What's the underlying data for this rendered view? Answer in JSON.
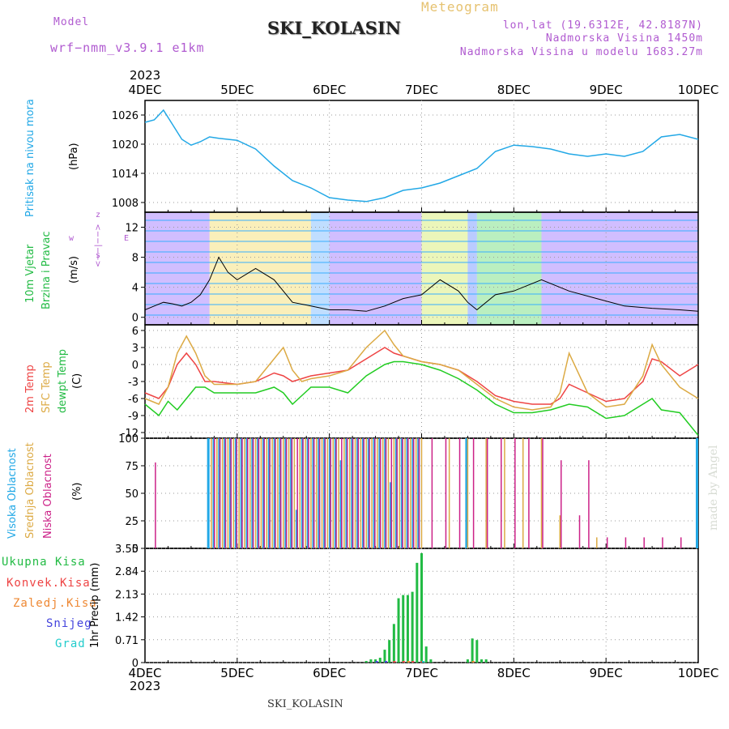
{
  "header": {
    "model_label": "Model",
    "model_value": "wrf−nmm_v3.9.1 e1km",
    "chart_kind": "Meteogram",
    "station": "SKI_KOLASIN",
    "coords": "lon,lat (19.6312E, 42.8187N)",
    "elevation": "Nadmorska Visina 1450m",
    "model_elevation": "Nadmorska Visina u modelu 1683.27m",
    "watermark": "made by Angel",
    "footer_station": "SKI_KOLASIN",
    "year_top": "2023",
    "year_bottom": "2023"
  },
  "colors": {
    "pressure": "#22a8e6",
    "wind_speed": "#000000",
    "temp2m": "#ee4444",
    "temp_sfc": "#dcaa44",
    "dewpoint": "#22cc22",
    "cloud_high": "#22a8e6",
    "cloud_mid": "#dcaa44",
    "cloud_low": "#cc2288",
    "precip_total": "#22bb44",
    "precip_conv": "#ee4444",
    "precip_freezing": "#ee8833",
    "precip_snow": "#4444dd",
    "precip_hail": "#22cccc"
  },
  "chart_data": {
    "x_labels": [
      "4DEC",
      "5DEC",
      "6DEC",
      "7DEC",
      "8DEC",
      "9DEC",
      "10DEC"
    ],
    "panels": [
      {
        "id": "pressure",
        "type": "line",
        "ylabel": "Pritisak na nivou mora",
        "unit": "(hPa)",
        "yticks": [
          1008,
          1014,
          1020,
          1026
        ],
        "ylim": [
          1006,
          1029
        ],
        "series": [
          {
            "name": "Pritisak na nivou mora",
            "x": [
              0,
              0.1,
              0.2,
              0.3,
              0.4,
              0.5,
              0.6,
              0.7,
              0.8,
              0.9,
              1.0,
              1.2,
              1.4,
              1.6,
              1.8,
              2.0,
              2.2,
              2.4,
              2.6,
              2.8,
              3.0,
              3.2,
              3.4,
              3.6,
              3.8,
              4.0,
              4.2,
              4.4,
              4.6,
              4.8,
              5.0,
              5.2,
              5.4,
              5.6,
              5.8,
              6.0
            ],
            "y": [
              1024.5,
              1025,
              1027,
              1024,
              1021,
              1019.8,
              1020.5,
              1021.5,
              1021.2,
              1021,
              1020.8,
              1019,
              1015.5,
              1012.5,
              1011,
              1009,
              1008.5,
              1008.2,
              1009,
              1010.5,
              1011,
              1012,
              1013.5,
              1015,
              1018.5,
              1019.8,
              1019.5,
              1019,
              1018,
              1017.5,
              1018,
              1017.5,
              1018.5,
              1021.5,
              1022,
              1021
            ]
          }
        ]
      },
      {
        "id": "wind",
        "type": "line",
        "ylabel": "10m Vjetar",
        "ylabel2": "Brzina i Pravac",
        "unit": "(m/s)",
        "compass": [
          "w",
          "<−−|−−>",
          "E",
          "z",
          "s"
        ],
        "yticks": [
          0,
          4,
          8,
          12
        ],
        "ylim": [
          -1,
          14
        ],
        "series": [
          {
            "name": "Brzina",
            "x": [
              0,
              0.1,
              0.2,
              0.3,
              0.4,
              0.5,
              0.6,
              0.7,
              0.8,
              0.9,
              1.0,
              1.2,
              1.4,
              1.6,
              1.8,
              2.0,
              2.2,
              2.4,
              2.6,
              2.8,
              3.0,
              3.2,
              3.4,
              3.5,
              3.6,
              3.8,
              4.0,
              4.3,
              4.6,
              4.9,
              5.2,
              5.5,
              5.8,
              6.0
            ],
            "y": [
              1,
              1.5,
              2,
              1.8,
              1.5,
              2,
              3,
              5,
              8,
              6,
              5,
              6.5,
              5,
              2,
              1.5,
              1,
              1,
              0.8,
              1.5,
              2.5,
              3,
              5,
              3.5,
              2,
              1,
              3,
              3.5,
              5,
              3.5,
              2.5,
              1.5,
              1.2,
              1,
              0.8
            ]
          }
        ]
      },
      {
        "id": "temperature",
        "type": "line",
        "labels": [
          "2m Temp",
          "SFC Temp",
          "dewpt Temp"
        ],
        "unit": "(C)",
        "yticks": [
          -12,
          -9,
          -6,
          -3,
          0,
          3,
          6
        ],
        "ylim": [
          -13,
          7
        ],
        "series": [
          {
            "name": "2m Temp",
            "x": [
              0,
              0.15,
              0.25,
              0.35,
              0.45,
              0.55,
              0.65,
              0.75,
              1.0,
              1.2,
              1.4,
              1.5,
              1.6,
              1.7,
              1.8,
              2.0,
              2.2,
              2.4,
              2.6,
              2.7,
              2.8,
              3.0,
              3.2,
              3.4,
              3.6,
              3.8,
              4.0,
              4.2,
              4.4,
              4.5,
              4.6,
              4.8,
              5.0,
              5.2,
              5.4,
              5.5,
              5.6,
              5.8,
              6.0
            ],
            "y": [
              -5,
              -6,
              -4,
              0,
              2,
              0,
              -3,
              -3,
              -3.5,
              -3,
              -1.5,
              -2,
              -3,
              -2.5,
              -2,
              -1.5,
              -1,
              1,
              3,
              2,
              1.5,
              0.5,
              0,
              -1,
              -3,
              -5.5,
              -6.5,
              -7,
              -7,
              -6,
              -3.5,
              -5,
              -6.5,
              -6,
              -3,
              1,
              0.5,
              -2,
              0
            ]
          },
          {
            "name": "SFC Temp",
            "x": [
              0,
              0.15,
              0.25,
              0.35,
              0.45,
              0.55,
              0.65,
              0.75,
              1.0,
              1.2,
              1.4,
              1.5,
              1.6,
              1.7,
              1.8,
              2.0,
              2.2,
              2.4,
              2.6,
              2.7,
              2.8,
              3.0,
              3.2,
              3.4,
              3.6,
              3.8,
              4.0,
              4.2,
              4.4,
              4.5,
              4.6,
              4.8,
              5.0,
              5.2,
              5.4,
              5.5,
              5.6,
              5.8,
              6.0
            ],
            "y": [
              -6,
              -7,
              -4,
              2,
              5,
              2,
              -2,
              -3.5,
              -3.5,
              -3,
              1,
              3,
              -1,
              -3,
              -2.5,
              -2,
              -1,
              3,
              6,
              3.5,
              1.5,
              0.5,
              0,
              -1,
              -3.5,
              -6,
              -7.5,
              -8,
              -7.5,
              -5,
              2,
              -5,
              -7.5,
              -7,
              -2,
              3.5,
              0,
              -4,
              -6
            ]
          },
          {
            "name": "dewpt Temp",
            "x": [
              0,
              0.15,
              0.25,
              0.35,
              0.45,
              0.55,
              0.65,
              0.75,
              1.0,
              1.2,
              1.4,
              1.5,
              1.6,
              1.7,
              1.8,
              2.0,
              2.2,
              2.4,
              2.6,
              2.7,
              2.8,
              3.0,
              3.2,
              3.4,
              3.6,
              3.8,
              4.0,
              4.2,
              4.4,
              4.5,
              4.6,
              4.8,
              5.0,
              5.2,
              5.4,
              5.5,
              5.6,
              5.8,
              6.0
            ],
            "y": [
              -7,
              -9,
              -6.5,
              -8,
              -6,
              -4,
              -4,
              -5,
              -5,
              -5,
              -4,
              -5,
              -7,
              -5.5,
              -4,
              -4,
              -5,
              -2,
              0,
              0.5,
              0.5,
              0,
              -1,
              -2.5,
              -4.5,
              -7,
              -8.5,
              -8.5,
              -8,
              -7.5,
              -7,
              -7.5,
              -9.5,
              -9,
              -7,
              -6,
              -8,
              -8.5,
              -12.5
            ]
          }
        ]
      },
      {
        "id": "clouds",
        "type": "bar",
        "labels": [
          "Visoka Oblacnost",
          "Srednja Oblacnost",
          "Niska Oblacnost"
        ],
        "unit": "(%)",
        "yticks": [
          0,
          25,
          50,
          75,
          100
        ],
        "ylim": [
          0,
          100
        ],
        "series": [
          {
            "name": "Visoka Oblacnost",
            "x": [
              0.7,
              0.76,
              0.82,
              0.88,
              0.94,
              1.0,
              1.06,
              1.12,
              1.18,
              1.24,
              1.3,
              1.36,
              1.42,
              1.48,
              1.54,
              1.6,
              1.66,
              1.72,
              1.78,
              1.84,
              1.9,
              1.96,
              2.02,
              2.08,
              2.14,
              2.2,
              2.26,
              2.32,
              2.38,
              2.44,
              2.5,
              2.56,
              2.62,
              2.68,
              2.74,
              2.8,
              2.86,
              2.92,
              2.98,
              3.5,
              6.0
            ],
            "y": [
              100,
              100,
              100,
              100,
              100,
              100,
              100,
              100,
              100,
              100,
              100,
              100,
              100,
              100,
              100,
              100,
              35,
              100,
              100,
              100,
              100,
              100,
              100,
              100,
              80,
              100,
              100,
              100,
              100,
              100,
              100,
              100,
              100,
              60,
              100,
              100,
              100,
              100,
              100,
              100,
              100
            ]
          },
          {
            "name": "Srednja Oblacnost",
            "x": [
              0.72,
              0.78,
              0.84,
              0.9,
              0.96,
              1.02,
              1.08,
              1.14,
              1.2,
              1.26,
              1.32,
              1.38,
              1.44,
              1.5,
              1.56,
              1.62,
              1.68,
              1.74,
              1.8,
              1.86,
              1.92,
              1.98,
              2.04,
              2.1,
              2.16,
              2.22,
              2.28,
              2.34,
              2.4,
              2.46,
              2.52,
              2.58,
              2.64,
              2.7,
              2.76,
              2.82,
              2.88,
              2.94,
              3.0,
              3.3,
              3.5,
              3.7,
              3.9,
              4.1,
              4.3,
              4.5,
              4.9
            ],
            "y": [
              100,
              100,
              100,
              100,
              100,
              100,
              100,
              100,
              100,
              100,
              100,
              100,
              100,
              100,
              100,
              100,
              100,
              100,
              100,
              100,
              100,
              100,
              100,
              100,
              100,
              100,
              100,
              100,
              100,
              100,
              100,
              100,
              100,
              100,
              100,
              100,
              100,
              100,
              100,
              100,
              100,
              100,
              100,
              100,
              100,
              30,
              10
            ]
          },
          {
            "name": "Niska Oblacnost",
            "x": [
              0.1,
              0.74,
              0.8,
              0.86,
              0.92,
              0.98,
              1.04,
              1.1,
              1.16,
              1.22,
              1.28,
              1.34,
              1.4,
              1.46,
              1.52,
              1.58,
              1.64,
              1.7,
              1.76,
              1.82,
              1.88,
              1.94,
              2.0,
              2.06,
              2.12,
              2.18,
              2.24,
              2.3,
              2.36,
              2.42,
              2.48,
              2.54,
              2.6,
              2.66,
              2.72,
              2.78,
              2.84,
              2.9,
              2.96,
              3.1,
              3.25,
              3.4,
              3.55,
              3.7,
              3.85,
              4.0,
              4.15,
              4.3,
              4.5,
              4.7,
              4.8,
              5.0,
              5.2,
              5.4,
              5.6,
              5.8
            ],
            "y": [
              78,
              100,
              100,
              100,
              100,
              100,
              100,
              100,
              100,
              100,
              100,
              100,
              100,
              100,
              100,
              100,
              100,
              100,
              100,
              100,
              100,
              100,
              100,
              100,
              100,
              100,
              100,
              100,
              100,
              100,
              100,
              100,
              100,
              100,
              100,
              100,
              100,
              100,
              100,
              100,
              100,
              100,
              100,
              100,
              100,
              100,
              100,
              100,
              80,
              30,
              80,
              10,
              10,
              10,
              10,
              10
            ]
          }
        ]
      },
      {
        "id": "precip",
        "type": "bar",
        "labels": [
          "Ukupna Kisa",
          "Konvek.Kisa",
          "Zaledj.Kisa",
          "Snijeg",
          "Grad"
        ],
        "unit": "1hr Precip (mm)",
        "yticks": [
          0,
          0.71,
          1.42,
          2.13,
          2.84,
          3.55
        ],
        "ylim": [
          0,
          3.55
        ],
        "series": [
          {
            "name": "Ukupna Kisa",
            "x": [
              2.4,
              2.45,
              2.5,
              2.55,
              2.6,
              2.65,
              2.7,
              2.75,
              2.8,
              2.85,
              2.9,
              2.95,
              3.0,
              3.05,
              3.1,
              3.5,
              3.55,
              3.6,
              3.65,
              3.7
            ],
            "y": [
              0.05,
              0.1,
              0.1,
              0.15,
              0.4,
              0.7,
              1.2,
              2.0,
              2.1,
              2.1,
              2.2,
              3.1,
              3.4,
              0.5,
              0.1,
              0.1,
              0.75,
              0.7,
              0.1,
              0.1
            ]
          },
          {
            "name": "Konvek.Kisa",
            "x": [
              2.7,
              2.8,
              2.9,
              3.0
            ],
            "y": [
              0.05,
              0.05,
              0.05,
              0.05
            ]
          },
          {
            "name": "Zaledj.Kisa",
            "x": [
              2.85,
              3.55
            ],
            "y": [
              0.05,
              0.05
            ]
          },
          {
            "name": "Snijeg",
            "x": [
              2.5,
              2.6
            ],
            "y": [
              0.05,
              0.05
            ]
          },
          {
            "name": "Grad",
            "x": [
              3.0
            ],
            "y": [
              0.05
            ]
          }
        ]
      }
    ]
  }
}
